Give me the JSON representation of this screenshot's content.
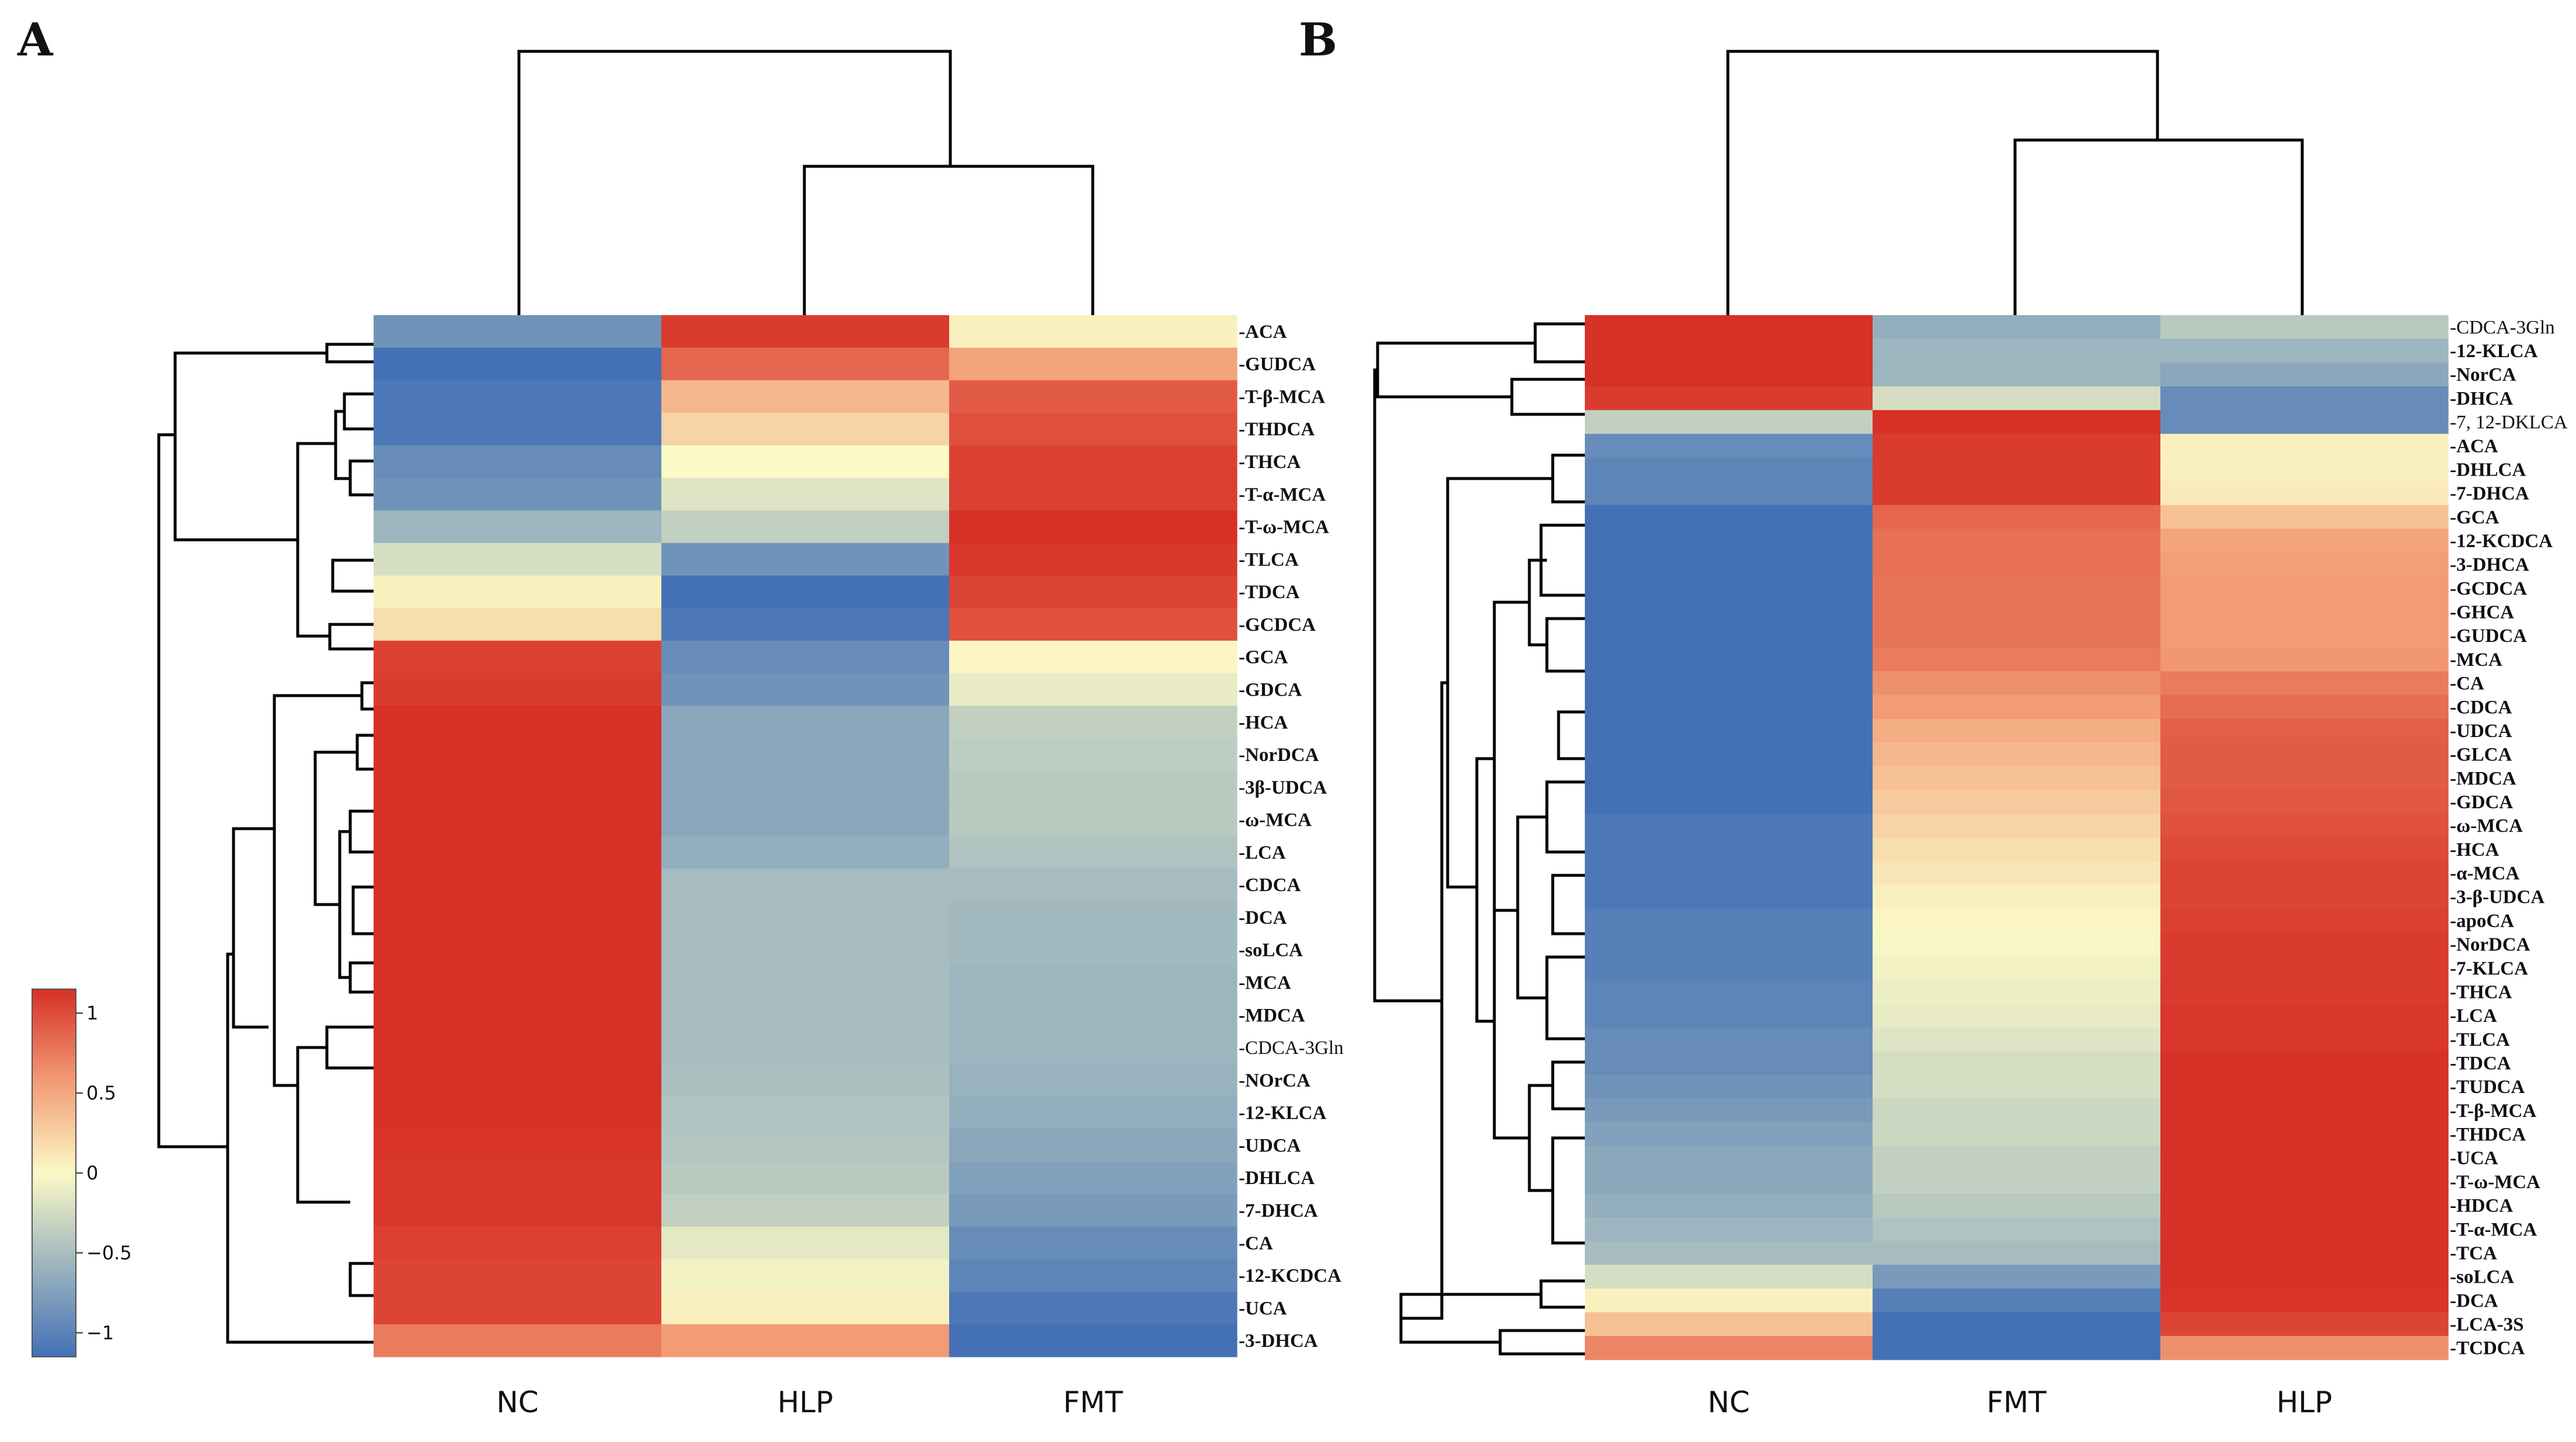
{
  "colors": {
    "low": "#4471b6",
    "mid_low": "#9cb5be",
    "mid": "#fbf9c6",
    "mid_high": "#f29b74",
    "high": "#d73027"
  },
  "colorbar": {
    "ticks": [
      {
        "value": 1,
        "label": "1"
      },
      {
        "value": 0.5,
        "label": "0.5"
      },
      {
        "value": 0,
        "label": "0"
      },
      {
        "value": -0.5,
        "label": "−0.5"
      },
      {
        "value": -1,
        "label": "−1"
      }
    ],
    "range": [
      -1.15,
      1.15
    ]
  },
  "chart_data": [
    {
      "type": "heatmap",
      "panel_label": "A",
      "columns": [
        "NC",
        "HLP",
        "FMT"
      ],
      "rows": [
        {
          "label": "-ACA",
          "values": [
            -0.75,
            0.95,
            0.05
          ]
        },
        {
          "label": "-GUDCA",
          "values": [
            -1.0,
            0.75,
            0.45
          ]
        },
        {
          "label": "-T-β-MCA",
          "values": [
            -0.95,
            0.35,
            0.8
          ]
        },
        {
          "label": "-THDCA",
          "values": [
            -0.95,
            0.2,
            0.85
          ]
        },
        {
          "label": "-THCA",
          "values": [
            -0.8,
            0.0,
            0.92
          ]
        },
        {
          "label": "-T-α-MCA",
          "values": [
            -0.75,
            -0.15,
            0.93
          ]
        },
        {
          "label": "-T-ω-MCA",
          "values": [
            -0.5,
            -0.3,
            1.0
          ]
        },
        {
          "label": "-TLCA",
          "values": [
            -0.2,
            -0.75,
            0.97
          ]
        },
        {
          "label": "-TDCA",
          "values": [
            0.05,
            -1.0,
            0.9
          ]
        },
        {
          "label": "-GCDCA",
          "values": [
            0.15,
            -0.95,
            0.85
          ]
        },
        {
          "label": "-GCA",
          "values": [
            0.92,
            -0.8,
            0.02
          ]
        },
        {
          "label": "-GDCA",
          "values": [
            0.95,
            -0.75,
            -0.1
          ]
        },
        {
          "label": "-HCA",
          "values": [
            1.0,
            -0.6,
            -0.3
          ]
        },
        {
          "label": "-NorDCA",
          "values": [
            1.0,
            -0.6,
            -0.32
          ]
        },
        {
          "label": "-3β-UDCA",
          "values": [
            1.0,
            -0.6,
            -0.35
          ]
        },
        {
          "label": "-ω-MCA",
          "values": [
            1.0,
            -0.6,
            -0.35
          ]
        },
        {
          "label": "-LCA",
          "values": [
            1.0,
            -0.55,
            -0.4
          ]
        },
        {
          "label": "-CDCA",
          "values": [
            1.0,
            -0.45,
            -0.45
          ]
        },
        {
          "label": "-DCA",
          "values": [
            1.0,
            -0.45,
            -0.48
          ]
        },
        {
          "label": "-soLCA",
          "values": [
            1.0,
            -0.45,
            -0.48
          ]
        },
        {
          "label": "-MCA",
          "values": [
            1.0,
            -0.45,
            -0.5
          ]
        },
        {
          "label": "-MDCA",
          "values": [
            1.0,
            -0.45,
            -0.5
          ]
        },
        {
          "label": "-CDCA-3Gln",
          "values": [
            1.0,
            -0.45,
            -0.5
          ]
        },
        {
          "label": "-NOrCA",
          "values": [
            1.0,
            -0.42,
            -0.52
          ]
        },
        {
          "label": "-12-KLCA",
          "values": [
            1.0,
            -0.4,
            -0.55
          ]
        },
        {
          "label": "-UDCA",
          "values": [
            0.98,
            -0.38,
            -0.6
          ]
        },
        {
          "label": "-DHLCA",
          "values": [
            0.97,
            -0.35,
            -0.65
          ]
        },
        {
          "label": "-7-DHCA",
          "values": [
            0.97,
            -0.3,
            -0.7
          ]
        },
        {
          "label": "-CA",
          "values": [
            0.93,
            -0.12,
            -0.8
          ]
        },
        {
          "label": "-12-KCDCA",
          "values": [
            0.9,
            -0.05,
            -0.85
          ]
        },
        {
          "label": "-UCA",
          "values": [
            0.9,
            0.05,
            -0.95
          ]
        },
        {
          "label": "-3-DHCA",
          "values": [
            0.65,
            0.5,
            -1.0
          ]
        }
      ]
    },
    {
      "type": "heatmap",
      "panel_label": "B",
      "columns": [
        "NC",
        "FMT",
        "HLP"
      ],
      "rows": [
        {
          "label": "-CDCA-3Gln",
          "values": [
            1.0,
            -0.55,
            -0.35
          ]
        },
        {
          "label": "-12-KLCA",
          "values": [
            1.0,
            -0.5,
            -0.5
          ]
        },
        {
          "label": "-NorCA",
          "values": [
            1.0,
            -0.5,
            -0.6
          ]
        },
        {
          "label": "-DHCA",
          "values": [
            0.95,
            -0.2,
            -0.8
          ]
        },
        {
          "label": "-7, 12-DKLCA",
          "values": [
            -0.3,
            1.0,
            -0.8
          ]
        },
        {
          "label": "-ACA",
          "values": [
            -0.8,
            0.95,
            0.05
          ]
        },
        {
          "label": "-DHLCA",
          "values": [
            -0.85,
            0.95,
            0.05
          ]
        },
        {
          "label": "-7-DHCA",
          "values": [
            -0.85,
            0.95,
            0.08
          ]
        },
        {
          "label": "-GCA",
          "values": [
            -1.0,
            0.75,
            0.3
          ]
        },
        {
          "label": "-12-KCDCA",
          "values": [
            -1.0,
            0.7,
            0.45
          ]
        },
        {
          "label": "-3-DHCA",
          "values": [
            -1.0,
            0.7,
            0.48
          ]
        },
        {
          "label": "-GCDCA",
          "values": [
            -1.0,
            0.68,
            0.5
          ]
        },
        {
          "label": "-GHCA",
          "values": [
            -1.0,
            0.68,
            0.5
          ]
        },
        {
          "label": "-GUDCA",
          "values": [
            -1.0,
            0.68,
            0.5
          ]
        },
        {
          "label": "-MCA",
          "values": [
            -1.0,
            0.65,
            0.52
          ]
        },
        {
          "label": "-CA",
          "values": [
            -1.0,
            0.55,
            0.65
          ]
        },
        {
          "label": "-CDCA",
          "values": [
            -1.0,
            0.5,
            0.72
          ]
        },
        {
          "label": "-UDCA",
          "values": [
            -1.0,
            0.4,
            0.78
          ]
        },
        {
          "label": "-GLCA",
          "values": [
            -1.0,
            0.35,
            0.8
          ]
        },
        {
          "label": "-MDCA",
          "values": [
            -1.0,
            0.3,
            0.8
          ]
        },
        {
          "label": "-GDCA",
          "values": [
            -1.0,
            0.25,
            0.82
          ]
        },
        {
          "label": "-ω-MCA",
          "values": [
            -0.95,
            0.2,
            0.85
          ]
        },
        {
          "label": "-HCA",
          "values": [
            -0.95,
            0.15,
            0.88
          ]
        },
        {
          "label": "-α-MCA",
          "values": [
            -0.95,
            0.1,
            0.9
          ]
        },
        {
          "label": "-3-β-UDCA",
          "values": [
            -0.95,
            0.05,
            0.9
          ]
        },
        {
          "label": "-apoCA",
          "values": [
            -0.9,
            0.02,
            0.92
          ]
        },
        {
          "label": "-NorDCA",
          "values": [
            -0.9,
            -0.02,
            0.95
          ]
        },
        {
          "label": "-7-KLCA",
          "values": [
            -0.9,
            -0.05,
            0.95
          ]
        },
        {
          "label": "-THCA",
          "values": [
            -0.85,
            -0.08,
            0.95
          ]
        },
        {
          "label": "-LCA",
          "values": [
            -0.85,
            -0.1,
            0.97
          ]
        },
        {
          "label": "-TLCA",
          "values": [
            -0.8,
            -0.15,
            0.97
          ]
        },
        {
          "label": "-TDCA",
          "values": [
            -0.8,
            -0.2,
            1.0
          ]
        },
        {
          "label": "-TUDCA",
          "values": [
            -0.75,
            -0.2,
            1.0
          ]
        },
        {
          "label": "-T-β-MCA",
          "values": [
            -0.7,
            -0.25,
            1.0
          ]
        },
        {
          "label": "-THDCA",
          "values": [
            -0.65,
            -0.25,
            1.0
          ]
        },
        {
          "label": "-UCA",
          "values": [
            -0.6,
            -0.3,
            1.0
          ]
        },
        {
          "label": "-T-ω-MCA",
          "values": [
            -0.6,
            -0.3,
            1.0
          ]
        },
        {
          "label": "-HDCA",
          "values": [
            -0.55,
            -0.35,
            1.0
          ]
        },
        {
          "label": "-T-α-MCA",
          "values": [
            -0.5,
            -0.4,
            1.0
          ]
        },
        {
          "label": "-TCA",
          "values": [
            -0.45,
            -0.45,
            1.0
          ]
        },
        {
          "label": "-soLCA",
          "values": [
            -0.2,
            -0.7,
            1.0
          ]
        },
        {
          "label": "-DCA",
          "values": [
            0.05,
            -0.9,
            0.98
          ]
        },
        {
          "label": "-LCA-3S",
          "values": [
            0.3,
            -1.0,
            0.9
          ]
        },
        {
          "label": "-TCDCA",
          "values": [
            0.6,
            -1.0,
            0.55
          ]
        }
      ]
    }
  ]
}
